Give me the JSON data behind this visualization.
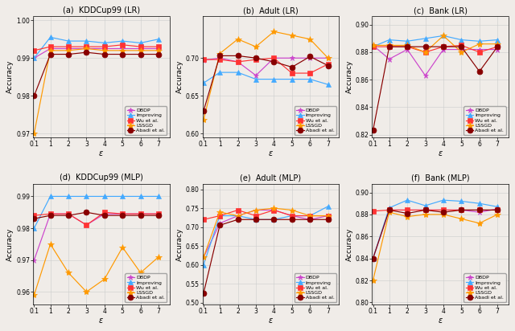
{
  "x": [
    0.1,
    1,
    2,
    3,
    4,
    5,
    6,
    7
  ],
  "plots": [
    {
      "title": "(a)  KDDCup99 (LR)",
      "ylabel": "Accuracy",
      "ylim": [
        0.969,
        1.001
      ],
      "yticks": [
        0.97,
        0.98,
        0.99,
        1.0
      ],
      "legend_loc": "lower right",
      "series": {
        "DBDP": [
          0.99,
          0.9925,
          0.9925,
          0.9925,
          0.9925,
          0.9925,
          0.9925,
          0.9925
        ],
        "Improving": [
          0.99,
          0.9955,
          0.9945,
          0.9945,
          0.994,
          0.9945,
          0.994,
          0.995
        ],
        "Wu et al.": [
          0.992,
          0.993,
          0.993,
          0.993,
          0.993,
          0.9935,
          0.993,
          0.993
        ],
        "LSSGD": [
          0.97,
          0.992,
          0.992,
          0.9925,
          0.992,
          0.992,
          0.992,
          0.992
        ],
        "Abadi et al.": [
          0.98,
          0.991,
          0.991,
          0.9915,
          0.991,
          0.991,
          0.991,
          0.991
        ]
      }
    },
    {
      "title": "(b)  Adult (LR)",
      "ylabel": "Accuracy",
      "ylim": [
        0.595,
        0.755
      ],
      "yticks": [
        0.6,
        0.65,
        0.7
      ],
      "legend_loc": "lower right",
      "series": {
        "DBDP": [
          0.697,
          0.7,
          0.695,
          0.677,
          0.7,
          0.7,
          0.7,
          0.7
        ],
        "Improving": [
          0.667,
          0.681,
          0.681,
          0.672,
          0.672,
          0.672,
          0.672,
          0.665
        ],
        "Wu et al.": [
          0.698,
          0.698,
          0.695,
          0.698,
          0.7,
          0.68,
          0.68,
          0.692
        ],
        "LSSGD": [
          0.618,
          0.706,
          0.725,
          0.715,
          0.735,
          0.73,
          0.725,
          0.7
        ],
        "Abadi et al.": [
          0.63,
          0.703,
          0.703,
          0.7,
          0.695,
          0.688,
          0.702,
          0.69
        ]
      }
    },
    {
      "title": "(c)  Bank (LR)",
      "ylabel": "Accuracy",
      "ylim": [
        0.818,
        0.906
      ],
      "yticks": [
        0.82,
        0.84,
        0.86,
        0.88,
        0.9
      ],
      "legend_loc": "lower right",
      "series": {
        "DBDP": [
          0.885,
          0.875,
          0.882,
          0.863,
          0.882,
          0.882,
          0.882,
          0.882
        ],
        "Improving": [
          0.884,
          0.889,
          0.888,
          0.89,
          0.892,
          0.889,
          0.888,
          0.889
        ],
        "Wu et al.": [
          0.884,
          0.884,
          0.884,
          0.88,
          0.884,
          0.885,
          0.88,
          0.884
        ],
        "LSSGD": [
          0.885,
          0.885,
          0.885,
          0.88,
          0.892,
          0.88,
          0.886,
          0.886
        ],
        "Abadi et al.": [
          0.823,
          0.884,
          0.884,
          0.884,
          0.884,
          0.884,
          0.866,
          0.884
        ]
      }
    },
    {
      "title": "(d)  KDDCup99 (MLP)",
      "ylabel": "Accuracy",
      "ylim": [
        0.956,
        0.994
      ],
      "yticks": [
        0.96,
        0.97,
        0.98,
        0.99
      ],
      "legend_loc": "lower right",
      "series": {
        "DBDP": [
          0.97,
          0.9845,
          0.9845,
          0.981,
          0.9845,
          0.9845,
          0.9845,
          0.9845
        ],
        "Improving": [
          0.98,
          0.99,
          0.99,
          0.99,
          0.99,
          0.99,
          0.99,
          0.99
        ],
        "Wu et al.": [
          0.984,
          0.9845,
          0.9845,
          0.981,
          0.985,
          0.9845,
          0.9845,
          0.9845
        ],
        "LSSGD": [
          0.959,
          0.975,
          0.966,
          0.96,
          0.964,
          0.974,
          0.966,
          0.971
        ],
        "Abadi et al.": [
          0.983,
          0.984,
          0.984,
          0.985,
          0.984,
          0.984,
          0.984,
          0.984
        ]
      }
    },
    {
      "title": "(e)  Adult (MLP)",
      "ylabel": "Accuracy",
      "ylim": [
        0.495,
        0.815
      ],
      "yticks": [
        0.5,
        0.55,
        0.6,
        0.65,
        0.7,
        0.75,
        0.8
      ],
      "legend_loc": "lower right",
      "series": {
        "DBDP": [
          0.62,
          0.71,
          0.73,
          0.745,
          0.745,
          0.73,
          0.72,
          0.73
        ],
        "Improving": [
          0.6,
          0.73,
          0.73,
          0.72,
          0.72,
          0.73,
          0.73,
          0.755
        ],
        "Wu et al.": [
          0.72,
          0.73,
          0.745,
          0.73,
          0.745,
          0.73,
          0.73,
          0.73
        ],
        "LSSGD": [
          0.62,
          0.74,
          0.73,
          0.745,
          0.75,
          0.745,
          0.73,
          0.73
        ],
        "Abadi et al.": [
          0.525,
          0.705,
          0.72,
          0.72,
          0.72,
          0.72,
          0.72,
          0.72
        ]
      }
    },
    {
      "title": "(f)  Bank (MLP)",
      "ylabel": "Accuracy",
      "ylim": [
        0.798,
        0.908
      ],
      "yticks": [
        0.8,
        0.82,
        0.84,
        0.86,
        0.88,
        0.9
      ],
      "legend_loc": "lower right",
      "series": {
        "DBDP": [
          0.84,
          0.884,
          0.884,
          0.884,
          0.884,
          0.884,
          0.882,
          0.885
        ],
        "Improving": [
          0.84,
          0.886,
          0.893,
          0.888,
          0.893,
          0.892,
          0.89,
          0.887
        ],
        "Wu et al.": [
          0.883,
          0.884,
          0.884,
          0.884,
          0.884,
          0.884,
          0.884,
          0.884
        ],
        "LSSGD": [
          0.82,
          0.882,
          0.878,
          0.88,
          0.88,
          0.876,
          0.872,
          0.88
        ],
        "Abadi et al.": [
          0.84,
          0.884,
          0.881,
          0.884,
          0.882,
          0.884,
          0.884,
          0.884
        ]
      }
    }
  ],
  "colors": {
    "DBDP": "#CC44CC",
    "Improving": "#44AAFF",
    "Wu et al.": "#FF3333",
    "LSSGD": "#FF9900",
    "Abadi et al.": "#880000"
  },
  "markers": {
    "DBDP": "*",
    "Improving": "^",
    "Wu et al.": "s",
    "LSSGD": "*",
    "Abadi et al.": "o"
  },
  "markersizes": {
    "DBDP": 5,
    "Improving": 4,
    "Wu et al.": 4,
    "LSSGD": 6,
    "Abadi et al.": 5
  },
  "series_order": [
    "DBDP",
    "Improving",
    "Wu et al.",
    "LSSGD",
    "Abadi et al."
  ],
  "bg_color": "#f0ece8",
  "linewidth": 0.85
}
